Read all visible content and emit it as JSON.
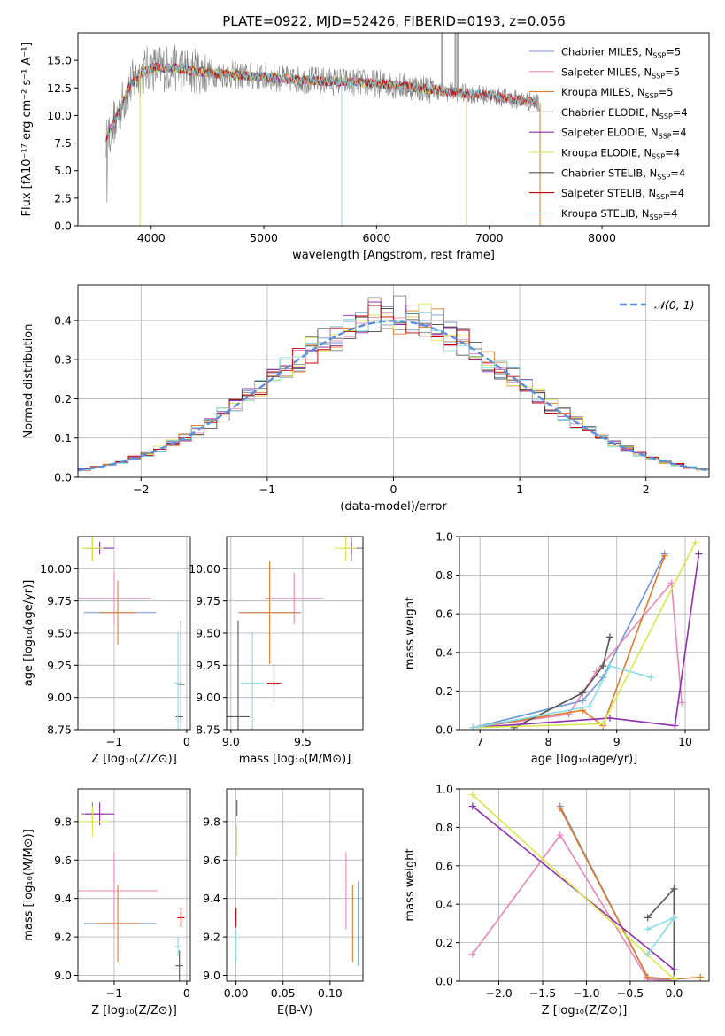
{
  "figure_title": "PLATE=0922, MJD=52426, FIBERID=0193, z=0.056",
  "colors": {
    "Chabrier MILES": "#6f96d6",
    "Salpeter MILES": "#e886b8",
    "Kroupa MILES": "#e07c2a",
    "Chabrier ELODIE": "#7f7f7f",
    "Salpeter ELODIE": "#8e2fae",
    "Kroupa ELODIE": "#d8e84a",
    "Chabrier STELIB": "#555555",
    "Salpeter STELIB": "#c40000",
    "Kroupa STELIB": "#86dee6",
    "normal_curve": "#5b8fd6"
  },
  "chart_data": [
    {
      "type": "line",
      "panel": "spectrum",
      "title": "PLATE=0922, MJD=52426, FIBERID=0193, z=0.056",
      "xlabel": "wavelength [Angstrom, rest frame]",
      "ylabel": "Flux [fλ10⁻¹⁷ erg cm⁻² s⁻¹ A⁻¹]",
      "xlim": [
        3350,
        8950
      ],
      "ylim": [
        0,
        17.5
      ],
      "xticks": [
        "4000",
        "5000",
        "6000",
        "7000",
        "8000"
      ],
      "yticks": [
        "0.0",
        "2.5",
        "5.0",
        "7.5",
        "10.0",
        "12.5",
        "15.0"
      ],
      "legend_position": "upper-right",
      "legend": [
        "Chabrier MILES, N_SSP=5",
        "Salpeter MILES, N_SSP=5",
        "Kroupa MILES, N_SSP=5",
        "Chabrier ELODIE, N_SSP=4",
        "Salpeter ELODIE, N_SSP=4",
        "Kroupa ELODIE, N_SSP=4",
        "Chabrier STELIB, N_SSP=4",
        "Salpeter STELIB, N_SSP=4",
        "Kroupa STELIB, N_SSP=4"
      ],
      "continuum_x": [
        3600,
        3700,
        3800,
        3900,
        4000,
        4200,
        4400,
        4600,
        4800,
        5000,
        5200,
        5400,
        5600,
        5800,
        6000,
        6200,
        6400,
        6600,
        6800,
        7000,
        7200,
        7400,
        7600,
        7800,
        8000,
        8200,
        8400
      ],
      "continuum_y": [
        8.0,
        10.0,
        12.5,
        13.8,
        14.3,
        14.3,
        14.0,
        13.8,
        13.6,
        13.5,
        13.3,
        13.2,
        13.1,
        13.0,
        12.9,
        12.7,
        12.5,
        12.2,
        12.0,
        11.8,
        11.5,
        11.2,
        11.0,
        10.7,
        10.5,
        10.3,
        10.0
      ],
      "dips": [
        {
          "x": 3900,
          "y": 0.0
        },
        {
          "x": 5690,
          "y": 0.0
        },
        {
          "x": 6800,
          "y": 0.0
        },
        {
          "x": 7450,
          "y": 0.0
        }
      ]
    },
    {
      "type": "histogram",
      "panel": "residuals",
      "xlabel": "(data-model)/error",
      "ylabel": "Normed distribution",
      "xlim": [
        -2.5,
        2.5
      ],
      "ylim": [
        0,
        0.49
      ],
      "xticks": [
        "−2",
        "−1",
        "0",
        "1",
        "2"
      ],
      "yticks": [
        "0.0",
        "0.1",
        "0.2",
        "0.3",
        "0.4"
      ],
      "legend": [
        "𝒩(0, 1)"
      ],
      "legend_position": "upper-right",
      "bin_width": 0.1,
      "grid": true
    },
    {
      "type": "errorbar",
      "panel": "age-vs-Z",
      "xlabel": "Z [log₁₀(Z/Z⊙)]",
      "ylabel": "age  [log₁₀(age/yr)]",
      "xlim": [
        -1.5,
        0.05
      ],
      "ylim": [
        8.75,
        10.25
      ],
      "xticks": [
        "−1",
        "0"
      ],
      "yticks": [
        "8.75",
        "9.00",
        "9.25",
        "9.50",
        "9.75",
        "10.00"
      ],
      "points": [
        {
          "series": "Chabrier MILES",
          "x": -0.92,
          "xerr": 0.5,
          "y": 9.66,
          "yerr": 0.0
        },
        {
          "series": "Salpeter MILES",
          "x": -1.0,
          "xerr": 0.5,
          "y": 9.77,
          "yerr": 0.2
        },
        {
          "series": "Kroupa MILES",
          "x": -0.95,
          "xerr": 0.25,
          "y": 9.66,
          "yerr": 0.25
        },
        {
          "series": "Chabrier STELIB",
          "x": -0.1,
          "xerr": 0.05,
          "y": 8.85,
          "yerr": 0.0
        },
        {
          "series": "Chabrier STELIB",
          "x": -0.08,
          "xerr": 0.05,
          "y": 9.1,
          "yerr": 0.5
        },
        {
          "series": "Kroupa STELIB",
          "x": -0.12,
          "xerr": 0.05,
          "y": 9.11,
          "yerr": 0.4
        },
        {
          "series": "Chabrier ELODIE",
          "x": -1.3,
          "xerr": 0.1,
          "y": 10.16,
          "yerr": 0.1
        },
        {
          "series": "Salpeter ELODIE",
          "x": -1.2,
          "xerr": 0.2,
          "y": 10.16,
          "yerr": 0.05
        },
        {
          "series": "Kroupa ELODIE",
          "x": -1.3,
          "xerr": 0.15,
          "y": 10.16,
          "yerr": 0.1
        }
      ]
    },
    {
      "type": "errorbar",
      "panel": "age-vs-mass",
      "xlabel": "mass [log₁₀(M/M⊙)]",
      "ylabel": "",
      "xlim": [
        8.97,
        9.92
      ],
      "ylim": [
        8.75,
        10.25
      ],
      "xticks": [
        "9.0",
        "9.5"
      ],
      "yticks": [
        "8.75",
        "9.00",
        "9.25",
        "9.50",
        "9.75",
        "10.00"
      ],
      "points": [
        {
          "series": "Chabrier MILES",
          "x": 9.27,
          "xerr": 0.22,
          "y": 9.66,
          "yerr": 0.0
        },
        {
          "series": "Salpeter MILES",
          "x": 9.44,
          "xerr": 0.2,
          "y": 9.77,
          "yerr": 0.2
        },
        {
          "series": "Kroupa MILES",
          "x": 9.27,
          "xerr": 0.2,
          "y": 9.66,
          "yerr": 0.4
        },
        {
          "series": "Chabrier STELIB",
          "x": 9.05,
          "xerr": 0.08,
          "y": 8.85,
          "yerr": 0.0
        },
        {
          "series": "Chabrier STELIB",
          "x": 9.05,
          "xerr": 0.0,
          "y": 9.1,
          "yerr": 0.5
        },
        {
          "series": "Kroupa STELIB",
          "x": 9.15,
          "xerr": 0.08,
          "y": 9.11,
          "yerr": 0.4
        },
        {
          "series": "Salpeter STELIB",
          "x": 9.3,
          "xerr": 0.05,
          "y": 9.11,
          "yerr": 0.15
        },
        {
          "series": "Chabrier ELODIE",
          "x": 9.84,
          "xerr": 0.08,
          "y": 10.16,
          "yerr": 0.1
        },
        {
          "series": "Salpeter ELODIE",
          "x": 9.84,
          "xerr": 0.05,
          "y": 10.16,
          "yerr": 0.05
        },
        {
          "series": "Kroupa ELODIE",
          "x": 9.8,
          "xerr": 0.08,
          "y": 10.16,
          "yerr": 0.1
        }
      ]
    },
    {
      "type": "line",
      "panel": "weight-vs-age",
      "xlabel": "age  [log₁₀(age/yr)]",
      "ylabel": "mass weight",
      "xlim": [
        6.7,
        10.35
      ],
      "ylim": [
        0,
        1.0
      ],
      "xticks": [
        "7",
        "8",
        "9",
        "10"
      ],
      "yticks": [
        "0.0",
        "0.2",
        "0.4",
        "0.6",
        "0.8",
        "1.0"
      ],
      "grid": true,
      "series": [
        {
          "name": "Chabrier MILES",
          "x": [
            6.9,
            8.5,
            8.8,
            9.7
          ],
          "y": [
            0.01,
            0.15,
            0.27,
            0.91
          ]
        },
        {
          "name": "Salpeter MILES",
          "x": [
            6.9,
            8.3,
            8.7,
            9.8,
            9.95
          ],
          "y": [
            0.01,
            0.08,
            0.3,
            0.76,
            0.14
          ]
        },
        {
          "name": "Kroupa MILES",
          "x": [
            6.9,
            8.5,
            8.8,
            9.7
          ],
          "y": [
            0.01,
            0.1,
            0.02,
            0.9
          ]
        },
        {
          "name": "Chabrier STELIB",
          "x": [
            7.5,
            8.5,
            8.8,
            8.9
          ],
          "y": [
            0.01,
            0.19,
            0.33,
            0.48
          ]
        },
        {
          "name": "Salpeter ELODIE",
          "x": [
            6.9,
            8.9,
            9.85,
            10.2
          ],
          "y": [
            0.01,
            0.06,
            0.02,
            0.91
          ]
        },
        {
          "name": "Kroupa ELODIE",
          "x": [
            6.9,
            8.8,
            10.15
          ],
          "y": [
            0.01,
            0.03,
            0.97
          ]
        },
        {
          "name": "Kroupa STELIB",
          "x": [
            6.9,
            8.6,
            8.9,
            9.5
          ],
          "y": [
            0.01,
            0.12,
            0.33,
            0.27
          ]
        }
      ]
    },
    {
      "type": "errorbar",
      "panel": "mass-vs-Z",
      "xlabel": "Z [log₁₀(Z/Z⊙)]",
      "ylabel": "mass [log₁₀(M/M⊙)]",
      "xlim": [
        -1.5,
        0.05
      ],
      "ylim": [
        8.97,
        9.97
      ],
      "xticks": [
        "−1",
        "0"
      ],
      "yticks": [
        "9.0",
        "9.2",
        "9.4",
        "9.6",
        "9.8"
      ],
      "points": [
        {
          "series": "Chabrier MILES",
          "x": -0.92,
          "xerr": 0.5,
          "y": 9.27,
          "yerr": 0.22
        },
        {
          "series": "Salpeter MILES",
          "x": -1.0,
          "xerr": 0.6,
          "y": 9.44,
          "yerr": 0.2
        },
        {
          "series": "Kroupa MILES",
          "x": -0.95,
          "xerr": 0.3,
          "y": 9.27,
          "yerr": 0.2
        },
        {
          "series": "Chabrier STELIB",
          "x": -0.1,
          "xerr": 0.05,
          "y": 9.05,
          "yerr": 0.08
        },
        {
          "series": "Salpeter STELIB",
          "x": -0.08,
          "xerr": 0.05,
          "y": 9.3,
          "yerr": 0.05
        },
        {
          "series": "Kroupa STELIB",
          "x": -0.12,
          "xerr": 0.05,
          "y": 9.15,
          "yerr": 0.05
        },
        {
          "series": "Chabrier ELODIE",
          "x": -1.3,
          "xerr": 0.15,
          "y": 9.84,
          "yerr": 0.06
        },
        {
          "series": "Salpeter ELODIE",
          "x": -1.2,
          "xerr": 0.2,
          "y": 9.84,
          "yerr": 0.06
        },
        {
          "series": "Kroupa ELODIE",
          "x": -1.3,
          "xerr": 0.2,
          "y": 9.8,
          "yerr": 0.08
        }
      ]
    },
    {
      "type": "errorbar",
      "panel": "mass-vs-EBV",
      "xlabel": "E(B-V)",
      "ylabel": "",
      "xlim": [
        -0.01,
        0.135
      ],
      "ylim": [
        8.97,
        9.97
      ],
      "xticks": [
        "0.00",
        "0.05",
        "0.10"
      ],
      "yticks": [
        "9.0",
        "9.2",
        "9.4",
        "9.6",
        "9.8"
      ],
      "points": [
        {
          "series": "Chabrier MILES",
          "x": 0.13,
          "y": 9.27,
          "yerr": 0.22
        },
        {
          "series": "Salpeter MILES",
          "x": 0.117,
          "y": 9.44,
          "yerr": 0.2
        },
        {
          "series": "Kroupa MILES",
          "x": 0.124,
          "y": 9.27,
          "yerr": 0.2
        },
        {
          "series": "Salpeter STELIB",
          "x": 0.0,
          "y": 9.3,
          "yerr": 0.05
        },
        {
          "series": "Kroupa STELIB",
          "x": 0.0,
          "y": 9.15,
          "yerr": 0.08
        },
        {
          "series": "Salpeter ELODIE",
          "x": 0.001,
          "y": 9.87,
          "yerr": 0.04
        },
        {
          "series": "Kroupa ELODIE",
          "x": 0.001,
          "y": 9.7,
          "yerr": 0.08
        }
      ]
    },
    {
      "type": "line",
      "panel": "weight-vs-Z",
      "xlabel": "Z [log₁₀(Z/Z⊙)]",
      "ylabel": "mass weight",
      "xlim": [
        -2.45,
        0.4
      ],
      "ylim": [
        0,
        1.0
      ],
      "xticks": [
        "−2.0",
        "−1.5",
        "−1.0",
        "−0.5",
        "0.0"
      ],
      "yticks": [
        "0.0",
        "0.2",
        "0.4",
        "0.6",
        "0.8",
        "1.0"
      ],
      "grid": true,
      "series": [
        {
          "name": "Chabrier MILES",
          "x": [
            -1.3,
            -0.3,
            0.0
          ],
          "y": [
            0.91,
            0.02,
            0.0
          ]
        },
        {
          "name": "Salpeter MILES",
          "x": [
            -2.3,
            -1.3,
            -0.3,
            0.0
          ],
          "y": [
            0.14,
            0.76,
            0.01,
            0.0
          ]
        },
        {
          "name": "Kroupa MILES",
          "x": [
            -1.3,
            -0.3,
            0.0,
            0.3
          ],
          "y": [
            0.9,
            0.02,
            0.01,
            0.02
          ]
        },
        {
          "name": "Chabrier STELIB",
          "x": [
            -0.3,
            0.0,
            0.0
          ],
          "y": [
            0.33,
            0.48,
            0.0
          ]
        },
        {
          "name": "Salpeter ELODIE",
          "x": [
            -2.3,
            0.0
          ],
          "y": [
            0.91,
            0.06
          ]
        },
        {
          "name": "Kroupa ELODIE",
          "x": [
            -2.3,
            0.0
          ],
          "y": [
            0.97,
            0.01
          ]
        },
        {
          "name": "Kroupa STELIB",
          "x": [
            -0.3,
            0.0,
            -0.3
          ],
          "y": [
            0.27,
            0.33,
            0.14
          ]
        }
      ]
    }
  ]
}
